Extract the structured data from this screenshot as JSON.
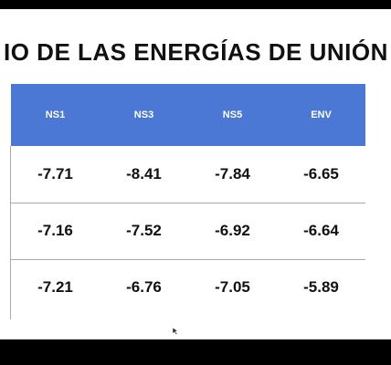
{
  "title": "IO DE LAS ENERGÍAS DE UNIÓN",
  "table": {
    "headers": [
      "NS1",
      "NS3",
      "NS5",
      "ENV"
    ],
    "rows": [
      [
        -7.71,
        -8.41,
        -7.84,
        -6.65
      ],
      [
        -7.16,
        -7.52,
        -6.92,
        -6.64
      ],
      [
        -7.21,
        -6.76,
        -7.05,
        -5.89
      ]
    ]
  }
}
